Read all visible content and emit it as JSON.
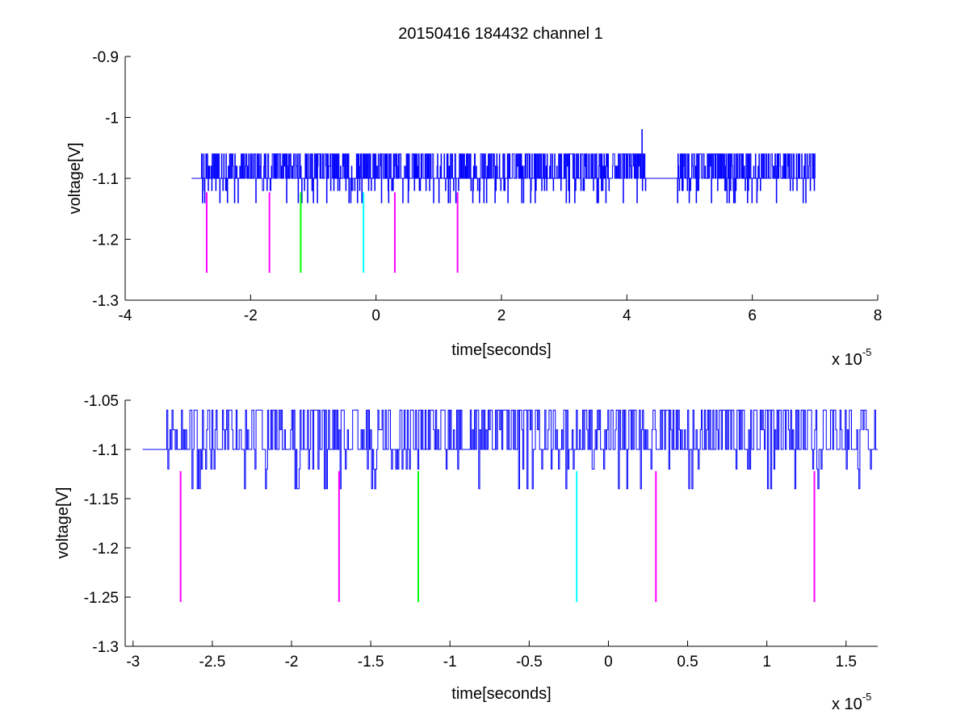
{
  "figure": {
    "title": "20150416 184432 channel 1"
  },
  "chart_data": [
    {
      "type": "line",
      "xlabel": "time[seconds]",
      "ylabel": "voltage[V]",
      "x_multiplier_label": "x 10",
      "x_multiplier_exponent": "-5",
      "xlim": [
        -4,
        8
      ],
      "ylim": [
        -1.3,
        -0.9
      ],
      "xticks": [
        -4,
        -2,
        0,
        2,
        4,
        6,
        8
      ],
      "xtick_labels": [
        "-4",
        "-2",
        "0",
        "2",
        "4",
        "6",
        "8"
      ],
      "yticks": [
        -1.3,
        -1.2,
        -1.1,
        -1.0,
        -0.9
      ],
      "ytick_labels": [
        "-1.3",
        "-1.2",
        "-1.1",
        "-1",
        "-0.9"
      ],
      "grid": false,
      "series": [
        {
          "color": "#0000ff",
          "x_range": [
            -2.94,
            7.0
          ],
          "baseline": -1.1,
          "levels": [
            -1.14,
            -1.12,
            -1.1,
            -1.08,
            -1.06
          ],
          "spike": {
            "x": 4.24,
            "y": -1.02
          },
          "gap": [
            4.3,
            4.8
          ]
        }
      ],
      "markers": [
        {
          "x": -2.7,
          "y_top": -1.123,
          "y_bottom": -1.255,
          "color": "#ff00ff"
        },
        {
          "x": -1.7,
          "y_top": -1.123,
          "y_bottom": -1.255,
          "color": "#ff00ff"
        },
        {
          "x": -1.2,
          "y_top": -1.123,
          "y_bottom": -1.255,
          "color": "#00ff00"
        },
        {
          "x": -0.2,
          "y_top": -1.123,
          "y_bottom": -1.255,
          "color": "#00ffff"
        },
        {
          "x": 0.3,
          "y_top": -1.123,
          "y_bottom": -1.255,
          "color": "#ff00ff"
        },
        {
          "x": 1.3,
          "y_top": -1.123,
          "y_bottom": -1.255,
          "color": "#ff00ff"
        }
      ]
    },
    {
      "type": "line",
      "xlabel": "time[seconds]",
      "ylabel": "voltage[V]",
      "x_multiplier_label": "x 10",
      "x_multiplier_exponent": "-5",
      "xlim": [
        -3.05,
        1.7
      ],
      "ylim": [
        -1.3,
        -1.05
      ],
      "xticks": [
        -3,
        -2.5,
        -2,
        -1.5,
        -1,
        -0.5,
        0,
        0.5,
        1,
        1.5
      ],
      "xtick_labels": [
        "-3",
        "-2.5",
        "-2",
        "-1.5",
        "-1",
        "-0.5",
        "0",
        "0.5",
        "1",
        "1.5"
      ],
      "yticks": [
        -1.3,
        -1.25,
        -1.2,
        -1.15,
        -1.1,
        -1.05
      ],
      "ytick_labels": [
        "-1.3",
        "-1.25",
        "-1.2",
        "-1.15",
        "-1.1",
        "-1.05"
      ],
      "grid": false,
      "series": [
        {
          "color": "#0000ff",
          "x_range": [
            -2.94,
            1.7
          ],
          "baseline": -1.1,
          "levels": [
            -1.14,
            -1.12,
            -1.1,
            -1.08,
            -1.06
          ]
        }
      ],
      "markers": [
        {
          "x": -2.7,
          "y_top": -1.122,
          "y_bottom": -1.255,
          "color": "#ff00ff"
        },
        {
          "x": -1.7,
          "y_top": -1.122,
          "y_bottom": -1.255,
          "color": "#ff00ff"
        },
        {
          "x": -1.2,
          "y_top": -1.122,
          "y_bottom": -1.255,
          "color": "#00ff00"
        },
        {
          "x": -0.2,
          "y_top": -1.122,
          "y_bottom": -1.255,
          "color": "#00ffff"
        },
        {
          "x": 0.3,
          "y_top": -1.122,
          "y_bottom": -1.255,
          "color": "#ff00ff"
        },
        {
          "x": 1.3,
          "y_top": -1.122,
          "y_bottom": -1.255,
          "color": "#ff00ff"
        }
      ]
    }
  ]
}
